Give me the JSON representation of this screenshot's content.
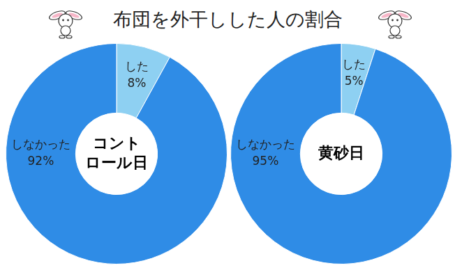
{
  "title": "布団を外干しした人の割合",
  "chart_data": [
    {
      "type": "doughnut",
      "center_label": [
        "コント",
        "ロール日"
      ],
      "categories": [
        "した",
        "しなかった"
      ],
      "values": [
        8,
        92
      ],
      "value_labels": [
        "8%",
        "92%"
      ],
      "colors": [
        "#8ed0f2",
        "#2f8ce6"
      ],
      "data_labels": true
    },
    {
      "type": "doughnut",
      "center_label": [
        "黄砂日"
      ],
      "categories": [
        "した",
        "しなかった"
      ],
      "values": [
        5,
        95
      ],
      "value_labels": [
        "5%",
        "95%"
      ],
      "colors": [
        "#8ed0f2",
        "#2f8ce6"
      ],
      "data_labels": true
    }
  ]
}
